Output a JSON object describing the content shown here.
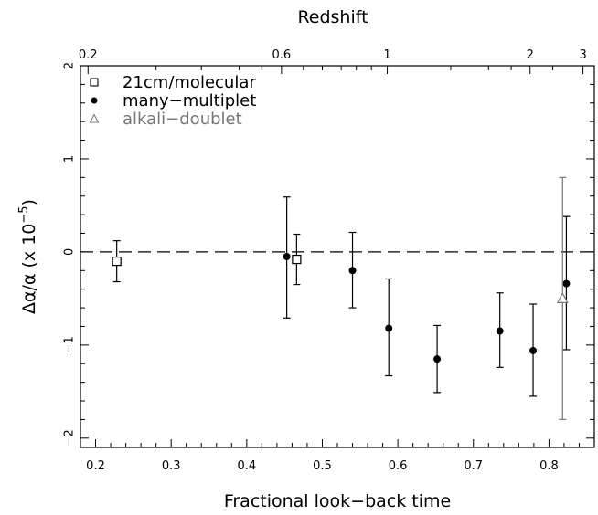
{
  "chart_data": {
    "type": "scatter",
    "xlabel": "Fractional look−back time",
    "ylabel": "Δα/α (x 10",
    "ylabel_exponent": "−5",
    "ylabel_close": ")",
    "top_axis_label": "Redshift",
    "xlim": [
      0.18,
      0.86
    ],
    "ylim": [
      -2.1,
      2.0
    ],
    "x_ticks": [
      "0.2",
      "0.3",
      "0.4",
      "0.5",
      "0.6",
      "0.7",
      "0.8"
    ],
    "y_ticks": [
      "2",
      "1",
      "0",
      "−1",
      "−2"
    ],
    "top_ticks": [
      {
        "label": "0.2",
        "x": 0.19
      },
      {
        "label": "0.6",
        "x": 0.446
      },
      {
        "label": "1",
        "x": 0.586
      },
      {
        "label": "2",
        "x": 0.775
      },
      {
        "label": "3",
        "x": 0.845
      }
    ],
    "reference_line": {
      "y": 0,
      "style": "dashed"
    },
    "legend_position": "top-left",
    "series": [
      {
        "name": "21cm/molecular",
        "marker": "open-square",
        "color": "#000000",
        "points": [
          {
            "x": 0.228,
            "y": -0.1,
            "yerr_low": 0.22,
            "yerr_high": 0.22
          },
          {
            "x": 0.466,
            "y": -0.08,
            "yerr_low": 0.27,
            "yerr_high": 0.27
          }
        ]
      },
      {
        "name": "many−multiplet",
        "marker": "filled-circle",
        "color": "#000000",
        "points": [
          {
            "x": 0.453,
            "y": -0.05,
            "yerr_low": 0.66,
            "yerr_high": 0.64
          },
          {
            "x": 0.54,
            "y": -0.2,
            "yerr_low": 0.4,
            "yerr_high": 0.41
          },
          {
            "x": 0.588,
            "y": -0.82,
            "yerr_low": 0.51,
            "yerr_high": 0.53
          },
          {
            "x": 0.652,
            "y": -1.15,
            "yerr_low": 0.36,
            "yerr_high": 0.36
          },
          {
            "x": 0.735,
            "y": -0.85,
            "yerr_low": 0.39,
            "yerr_high": 0.41
          },
          {
            "x": 0.779,
            "y": -1.06,
            "yerr_low": 0.49,
            "yerr_high": 0.5
          },
          {
            "x": 0.823,
            "y": -0.34,
            "yerr_low": 0.71,
            "yerr_high": 0.72
          }
        ]
      },
      {
        "name": "alkali−doublet",
        "marker": "open-triangle",
        "color": "#777777",
        "points": [
          {
            "x": 0.818,
            "y": -0.5,
            "yerr_low": 1.3,
            "yerr_high": 1.3
          }
        ]
      }
    ]
  }
}
